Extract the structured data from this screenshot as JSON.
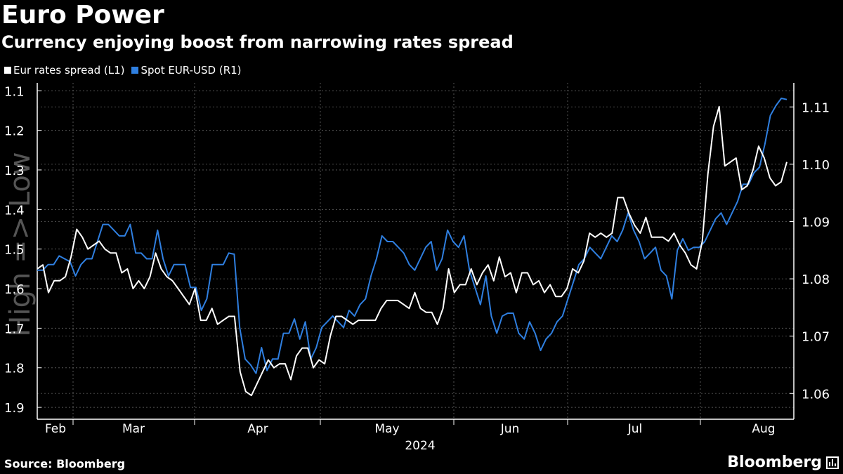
{
  "header": {
    "title": "Euro Power",
    "subtitle": "Currency enjoying boost from narrowing rates spread"
  },
  "footer": {
    "source": "Source: Bloomberg",
    "brand": "Bloomberg"
  },
  "colors": {
    "background": "#000000",
    "series_white": "#ffffff",
    "series_blue": "#2f7fe0",
    "grid": "#555555",
    "watermark": "#555555"
  },
  "chart_data": {
    "type": "line",
    "title": "Euro Power",
    "subtitle": "Currency enjoying boost from narrowing rates spread",
    "xlabel": "2024",
    "year_label": "2024",
    "watermark": "High => Low",
    "x_tick_labels": [
      "Feb",
      "Mar",
      "Apr",
      "May",
      "Jun",
      "Jul",
      "Aug"
    ],
    "left_axis": {
      "inverted": true,
      "range": [
        1.08,
        1.93
      ],
      "ticks": [
        1.1,
        1.2,
        1.3,
        1.4,
        1.5,
        1.6,
        1.7,
        1.8,
        1.9
      ],
      "tick_labels": [
        "1.1",
        "1.2",
        "1.3",
        "1.4",
        "1.5",
        "1.6",
        "1.7",
        "1.8",
        "1.9"
      ]
    },
    "right_axis": {
      "inverted": false,
      "range": [
        1.0555,
        1.1142
      ],
      "ticks": [
        1.06,
        1.07,
        1.08,
        1.09,
        1.1,
        1.11
      ],
      "tick_labels": [
        "1.06",
        "1.07",
        "1.08",
        "1.09",
        "1.10",
        "1.11"
      ]
    },
    "series": [
      {
        "name": "Eur rates spread (L1)",
        "axis": "left",
        "color": "#ffffff",
        "values": [
          1.55,
          1.54,
          1.61,
          1.58,
          1.58,
          1.57,
          1.52,
          1.45,
          1.47,
          1.5,
          1.49,
          1.48,
          1.5,
          1.51,
          1.51,
          1.56,
          1.55,
          1.6,
          1.58,
          1.6,
          1.57,
          1.51,
          1.55,
          1.57,
          1.58,
          1.6,
          1.62,
          1.64,
          1.6,
          1.68,
          1.68,
          1.65,
          1.69,
          1.68,
          1.67,
          1.67,
          1.81,
          1.86,
          1.87,
          1.84,
          1.81,
          1.78,
          1.8,
          1.79,
          1.79,
          1.83,
          1.77,
          1.75,
          1.75,
          1.8,
          1.78,
          1.79,
          1.72,
          1.67,
          1.67,
          1.68,
          1.69,
          1.68,
          1.68,
          1.68,
          1.68,
          1.65,
          1.63,
          1.63,
          1.63,
          1.64,
          1.65,
          1.61,
          1.65,
          1.66,
          1.66,
          1.69,
          1.65,
          1.55,
          1.61,
          1.59,
          1.59,
          1.55,
          1.59,
          1.56,
          1.54,
          1.58,
          1.52,
          1.57,
          1.56,
          1.61,
          1.56,
          1.56,
          1.59,
          1.58,
          1.61,
          1.59,
          1.62,
          1.62,
          1.6,
          1.55,
          1.56,
          1.53,
          1.46,
          1.47,
          1.46,
          1.47,
          1.46,
          1.37,
          1.37,
          1.41,
          1.44,
          1.46,
          1.42,
          1.47,
          1.47,
          1.47,
          1.48,
          1.46,
          1.49,
          1.51,
          1.54,
          1.55,
          1.48,
          1.31,
          1.19,
          1.14,
          1.29,
          1.28,
          1.27,
          1.35,
          1.34,
          1.3,
          1.24,
          1.27,
          1.32,
          1.34,
          1.33,
          1.28
        ]
      },
      {
        "name": "Spot EUR-USD  (R1)",
        "axis": "right",
        "color": "#2f7fe0",
        "values": [
          1.0815,
          1.0815,
          1.0825,
          1.0825,
          1.084,
          1.0835,
          1.083,
          1.0805,
          1.0825,
          1.0835,
          1.0835,
          1.0865,
          1.0895,
          1.0895,
          1.0885,
          1.0875,
          1.0875,
          1.0895,
          1.0845,
          1.0845,
          1.0835,
          1.0835,
          1.0885,
          1.0835,
          1.0805,
          1.0825,
          1.0825,
          1.0825,
          1.0785,
          1.0785,
          1.0745,
          1.0765,
          1.0825,
          1.0825,
          1.0825,
          1.0845,
          1.0843,
          1.0715,
          1.066,
          1.065,
          1.0635,
          1.068,
          1.064,
          1.066,
          1.066,
          1.0705,
          1.0705,
          1.073,
          1.0695,
          1.0725,
          1.066,
          1.068,
          1.0715,
          1.0725,
          1.0735,
          1.0725,
          1.0715,
          1.0745,
          1.0735,
          1.0755,
          1.0765,
          1.0805,
          1.0835,
          1.0875,
          1.0865,
          1.0865,
          1.0855,
          1.0845,
          1.0825,
          1.0815,
          1.0835,
          1.0855,
          1.0865,
          1.0815,
          1.0835,
          1.0885,
          1.0865,
          1.0855,
          1.0875,
          1.0815,
          1.0785,
          1.0755,
          1.0805,
          1.0735,
          1.0705,
          1.0735,
          1.074,
          1.074,
          1.0705,
          1.0695,
          1.0725,
          1.0705,
          1.0675,
          1.0695,
          1.0705,
          1.0725,
          1.0735,
          1.0765,
          1.0795,
          1.0825,
          1.0835,
          1.0855,
          1.0845,
          1.0835,
          1.0855,
          1.0875,
          1.0865,
          1.0885,
          1.0915,
          1.0885,
          1.0865,
          1.0835,
          1.0845,
          1.0855,
          1.0815,
          1.0805,
          1.0765,
          1.085,
          1.087,
          1.085,
          1.0855,
          1.0855,
          1.0865,
          1.0885,
          1.0905,
          1.0915,
          1.0895,
          1.0915,
          1.0935,
          1.0965,
          1.0965,
          1.0985,
          1.0995,
          1.1035,
          1.1085,
          1.1102,
          1.1115,
          1.1113
        ]
      }
    ]
  }
}
